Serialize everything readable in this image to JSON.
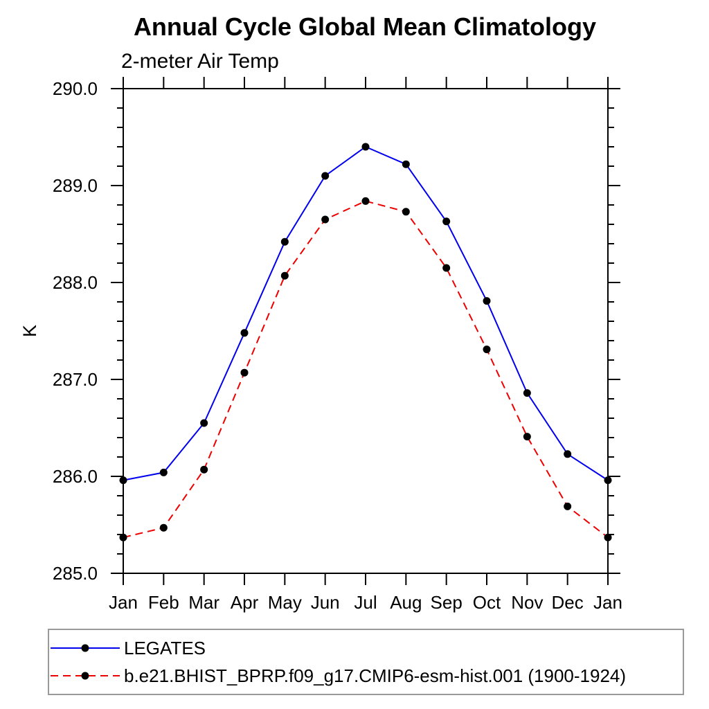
{
  "chart_data": {
    "type": "line",
    "title": "Annual Cycle Global Mean Climatology",
    "subtitle": "2-meter Air Temp",
    "ylabel": "K",
    "xlabel": "",
    "categories": [
      "Jan",
      "Feb",
      "Mar",
      "Apr",
      "May",
      "Jun",
      "Jul",
      "Aug",
      "Sep",
      "Oct",
      "Nov",
      "Dec",
      "Jan"
    ],
    "ylim": [
      285.0,
      290.0
    ],
    "ytick_major": 1.0,
    "ytick_minor": 0.2,
    "ytick_label_format": "one_decimal",
    "grid": false,
    "legend_position": "bottom-left-box",
    "series": [
      {
        "name": "LEGATES",
        "line_color": "#0000ee",
        "line_style": "solid",
        "marker": "filled-circle",
        "marker_color": "#000000",
        "values": [
          285.96,
          286.04,
          286.55,
          287.48,
          288.42,
          289.1,
          289.4,
          289.22,
          288.63,
          287.81,
          286.86,
          286.23,
          285.96
        ]
      },
      {
        "name": "b.e21.BHIST_BPRP.f09_g17.CMIP6-esm-hist.001 (1900-1924)",
        "line_color": "#ee0000",
        "line_style": "dashed",
        "marker": "filled-circle",
        "marker_color": "#000000",
        "values": [
          285.37,
          285.47,
          286.07,
          287.07,
          288.07,
          288.65,
          288.84,
          288.73,
          288.15,
          287.31,
          286.41,
          285.69,
          285.37
        ]
      }
    ],
    "colors": {
      "axis": "#000000",
      "legend_border": "#999999",
      "background": "#ffffff"
    }
  }
}
